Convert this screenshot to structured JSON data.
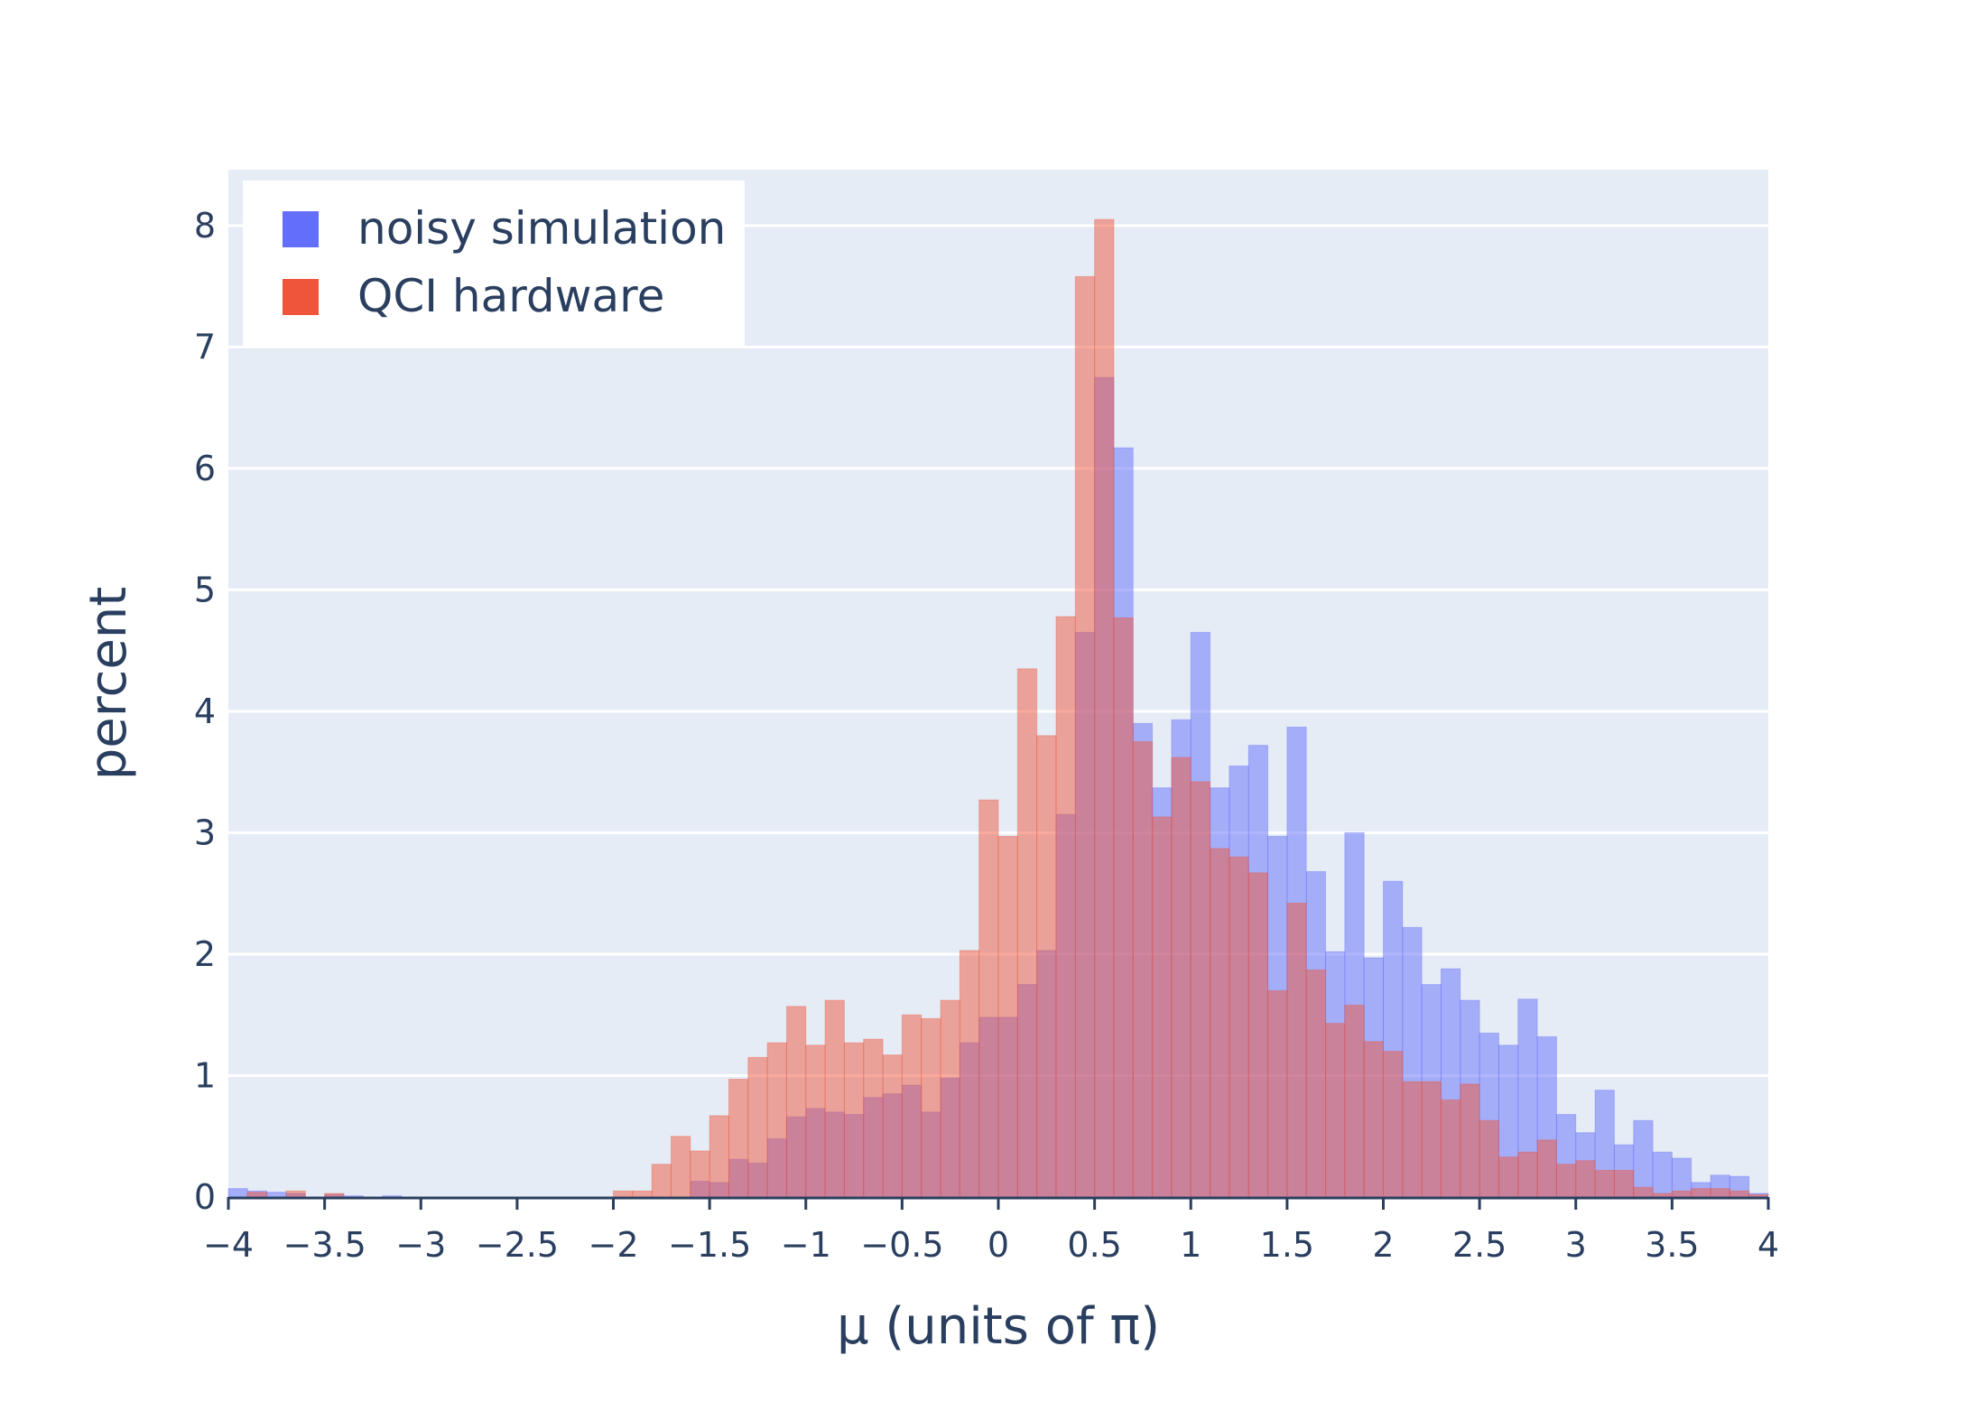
{
  "chart_data": {
    "type": "bar",
    "barmode": "overlay",
    "xlabel": "μ (units of π)",
    "ylabel": "percent",
    "xlim": [
      -4,
      4
    ],
    "ylim": [
      0,
      8.46
    ],
    "bin_width": 0.1,
    "x_ticks": [
      "−4",
      "−3.5",
      "−3",
      "−2.5",
      "−2",
      "−1.5",
      "−1",
      "−0.5",
      "0",
      "0.5",
      "1",
      "1.5",
      "2",
      "2.5",
      "3",
      "3.5",
      "4"
    ],
    "x_tick_values": [
      -4,
      -3.5,
      -3,
      -2.5,
      -2,
      -1.5,
      -1,
      -0.5,
      0,
      0.5,
      1,
      1.5,
      2,
      2.5,
      3,
      3.5,
      4
    ],
    "y_ticks": [
      "0",
      "1",
      "2",
      "3",
      "4",
      "5",
      "6",
      "7",
      "8"
    ],
    "y_tick_values": [
      0,
      1,
      2,
      3,
      4,
      5,
      6,
      7,
      8
    ],
    "grid": true,
    "legend_position": "top-left",
    "colors": {
      "plot_bg": "#e5ecf6",
      "grid": "#ffffff",
      "text": "#2a3f5f",
      "noisy_simulation": "#636efa",
      "qci_hardware": "#ef553b"
    },
    "bin_starts": [
      -4.0,
      -3.9,
      -3.8,
      -3.7,
      -3.6,
      -3.5,
      -3.4,
      -3.3,
      -3.2,
      -3.1,
      -3.0,
      -2.9,
      -2.8,
      -2.7,
      -2.6,
      -2.5,
      -2.4,
      -2.3,
      -2.2,
      -2.1,
      -2.0,
      -1.9,
      -1.8,
      -1.7,
      -1.6,
      -1.5,
      -1.4,
      -1.3,
      -1.2,
      -1.1,
      -1.0,
      -0.9,
      -0.8,
      -0.7,
      -0.6,
      -0.5,
      -0.4,
      -0.3,
      -0.2,
      -0.1,
      0.0,
      0.1,
      0.2,
      0.3,
      0.4,
      0.5,
      0.6,
      0.7,
      0.8,
      0.9,
      1.0,
      1.1,
      1.2,
      1.3,
      1.4,
      1.5,
      1.6,
      1.7,
      1.8,
      1.9,
      2.0,
      2.1,
      2.2,
      2.3,
      2.4,
      2.5,
      2.6,
      2.7,
      2.8,
      2.9,
      3.0,
      3.1,
      3.2,
      3.3,
      3.4,
      3.5,
      3.6,
      3.7,
      3.8,
      3.9
    ],
    "series": [
      {
        "name": "noisy simulation",
        "values": [
          0.07,
          0.05,
          0.04,
          0.03,
          0.0,
          0.02,
          0.01,
          0.0,
          0.01,
          0.0,
          0.0,
          0.0,
          0.0,
          0.0,
          0.0,
          0.0,
          0.0,
          0.0,
          0.0,
          0.0,
          0.0,
          0.0,
          0.0,
          0.0,
          0.13,
          0.12,
          0.31,
          0.28,
          0.48,
          0.66,
          0.73,
          0.7,
          0.68,
          0.82,
          0.85,
          0.92,
          0.7,
          0.98,
          1.27,
          1.48,
          1.48,
          1.75,
          2.03,
          3.15,
          4.65,
          6.75,
          6.17,
          3.9,
          3.37,
          3.93,
          4.65,
          3.37,
          3.55,
          3.72,
          2.97,
          3.87,
          2.68,
          2.02,
          3.0,
          1.97,
          2.6,
          2.22,
          1.75,
          1.88,
          1.62,
          1.35,
          1.25,
          1.63,
          1.32,
          0.68,
          0.53,
          0.88,
          0.43,
          0.63,
          0.37,
          0.32,
          0.12,
          0.18,
          0.17,
          0.03
        ]
      },
      {
        "name": "QCI hardware",
        "values": [
          0.0,
          0.04,
          0.0,
          0.05,
          0.0,
          0.03,
          0.0,
          0.0,
          0.0,
          0.0,
          0.0,
          0.0,
          0.0,
          0.0,
          0.0,
          0.0,
          0.0,
          0.0,
          0.0,
          0.0,
          0.05,
          0.05,
          0.27,
          0.5,
          0.38,
          0.67,
          0.97,
          1.15,
          1.27,
          1.57,
          1.25,
          1.62,
          1.27,
          1.3,
          1.17,
          1.5,
          1.47,
          1.62,
          2.03,
          3.27,
          2.97,
          4.35,
          3.8,
          4.78,
          7.58,
          8.05,
          4.77,
          3.75,
          3.13,
          3.62,
          3.42,
          2.87,
          2.8,
          2.67,
          1.7,
          2.42,
          1.87,
          1.43,
          1.58,
          1.28,
          1.2,
          0.95,
          0.95,
          0.8,
          0.93,
          0.63,
          0.33,
          0.37,
          0.47,
          0.27,
          0.3,
          0.22,
          0.22,
          0.08,
          0.03,
          0.05,
          0.07,
          0.07,
          0.05,
          0.02
        ]
      }
    ]
  }
}
